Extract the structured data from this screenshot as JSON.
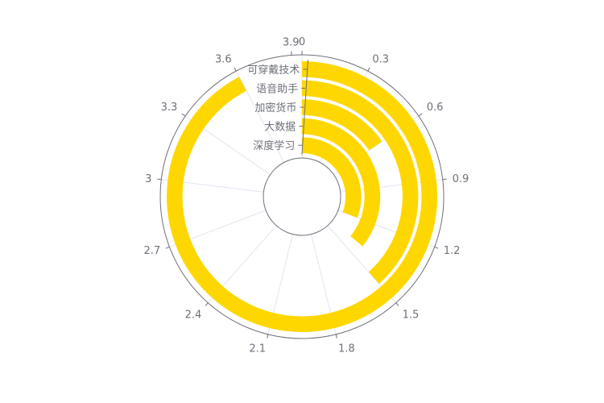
{
  "chart_data": {
    "type": "bar",
    "subtype": "polar-radial-bar",
    "title": "",
    "categories": [
      "深度学习",
      "大数据",
      "加密货币",
      "语音助手",
      "可穿戴技术"
    ],
    "series": [
      {
        "values": [
          1.2,
          1.4,
          0.6,
          1.5,
          3.6
        ]
      }
    ],
    "angle_axis": {
      "min": 0,
      "max": 3.9,
      "ticks": [
        "0",
        "0.3",
        "0.6",
        "0.9",
        "1.2",
        "1.5",
        "1.8",
        "2.1",
        "2.4",
        "2.7",
        "3",
        "3.3",
        "3.6",
        "3.9"
      ]
    },
    "grid": true,
    "legend": "none",
    "colors": {
      "bar": "#ffd700",
      "axis": "#6e7079",
      "split_line": "#e0e6f1"
    }
  }
}
